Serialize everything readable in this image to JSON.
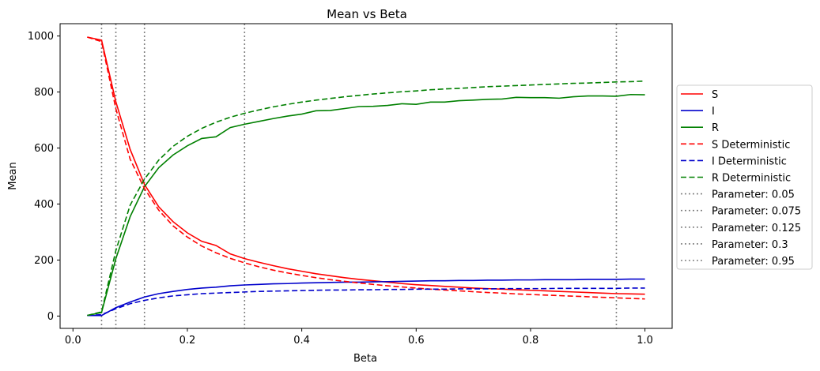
{
  "chart_data": {
    "type": "line",
    "title": "Mean vs Beta",
    "xlabel": "Beta",
    "ylabel": "Mean",
    "xlim": [
      -0.0225,
      1.0475
    ],
    "ylim": [
      -44,
      1044
    ],
    "xticks": [
      0.0,
      0.2,
      0.4,
      0.6,
      0.8,
      1.0
    ],
    "xtick_labels": [
      "0.0",
      "0.2",
      "0.4",
      "0.6",
      "0.8",
      "1.0"
    ],
    "yticks": [
      0,
      200,
      400,
      600,
      800,
      1000
    ],
    "ytick_labels": [
      "0",
      "200",
      "400",
      "600",
      "800",
      "1000"
    ],
    "grid": false,
    "legend_position": "outside right",
    "x": [
      0.025,
      0.05,
      0.075,
      0.1,
      0.125,
      0.15,
      0.175,
      0.2,
      0.225,
      0.25,
      0.275,
      0.3,
      0.325,
      0.35,
      0.375,
      0.4,
      0.425,
      0.45,
      0.475,
      0.5,
      0.525,
      0.55,
      0.575,
      0.6,
      0.625,
      0.65,
      0.675,
      0.7,
      0.725,
      0.75,
      0.775,
      0.8,
      0.825,
      0.85,
      0.875,
      0.9,
      0.925,
      0.95,
      0.975,
      1.0
    ],
    "series": [
      {
        "name": "S",
        "color": "#ff0000",
        "dash": "solid",
        "values": [
          996,
          985,
          765,
          595,
          470,
          390,
          337,
          297,
          267,
          252,
          222,
          205,
          192,
          180,
          169,
          160,
          151,
          144,
          137,
          131,
          126,
          121,
          116,
          112,
          109,
          106,
          103,
          100,
          98,
          96,
          94,
          92,
          90,
          88,
          86,
          84,
          82,
          80,
          79,
          78
        ]
      },
      {
        "name": "I",
        "color": "#0000cc",
        "dash": "solid",
        "values": [
          2,
          2,
          30,
          50,
          68,
          80,
          88,
          95,
          100,
          103,
          108,
          111,
          113,
          115,
          116,
          118,
          119,
          120,
          121,
          121,
          122,
          123,
          124,
          125,
          126,
          126,
          127,
          127,
          128,
          128,
          129,
          129,
          130,
          130,
          130,
          131,
          131,
          131,
          132,
          132
        ]
      },
      {
        "name": "R",
        "color": "#008000",
        "dash": "solid",
        "values": [
          2,
          13,
          205,
          355,
          462,
          530,
          575,
          608,
          634,
          640,
          673,
          685,
          695,
          705,
          714,
          721,
          733,
          734,
          741,
          748,
          749,
          752,
          758,
          756,
          764,
          764,
          769,
          771,
          774,
          775,
          781,
          780,
          780,
          778,
          783,
          786,
          786,
          785,
          791,
          790
        ]
      },
      {
        "name": "S Deterministic",
        "color": "#ff0000",
        "dash": "dashed",
        "values": [
          996,
          980,
          740,
          560,
          455,
          378,
          322,
          282,
          250,
          226,
          206,
          190,
          176,
          164,
          154,
          145,
          137,
          130,
          124,
          118,
          113,
          108,
          104,
          100,
          96,
          93,
          90,
          87,
          84,
          82,
          79,
          77,
          75,
          73,
          71,
          69,
          67,
          65,
          63,
          61
        ]
      },
      {
        "name": "I Deterministic",
        "color": "#0000cc",
        "dash": "dashed",
        "values": [
          2,
          5,
          26,
          44,
          56,
          65,
          72,
          76,
          80,
          82,
          84,
          86,
          88,
          89,
          90,
          91,
          92,
          93,
          93,
          94,
          94,
          95,
          95,
          96,
          96,
          96,
          97,
          97,
          97,
          98,
          98,
          98,
          98,
          99,
          99,
          99,
          99,
          99,
          100,
          100
        ]
      },
      {
        "name": "R Deterministic",
        "color": "#008000",
        "dash": "dashed",
        "values": [
          2,
          15,
          234,
          396,
          489,
          557,
          606,
          642,
          670,
          692,
          710,
          724,
          736,
          747,
          756,
          764,
          771,
          777,
          783,
          788,
          793,
          797,
          801,
          804,
          808,
          811,
          813,
          816,
          819,
          821,
          823,
          825,
          827,
          829,
          831,
          832,
          834,
          836,
          837,
          839
        ]
      }
    ],
    "vlines": [
      {
        "name": "Parameter: 0.05",
        "x": 0.05,
        "color": "#808080",
        "dash": "dotted"
      },
      {
        "name": "Parameter: 0.075",
        "x": 0.075,
        "color": "#808080",
        "dash": "dotted"
      },
      {
        "name": "Parameter: 0.125",
        "x": 0.125,
        "color": "#808080",
        "dash": "dotted"
      },
      {
        "name": "Parameter: 0.3",
        "x": 0.3,
        "color": "#808080",
        "dash": "dotted"
      },
      {
        "name": "Parameter: 0.95",
        "x": 0.95,
        "color": "#808080",
        "dash": "dotted"
      }
    ]
  }
}
